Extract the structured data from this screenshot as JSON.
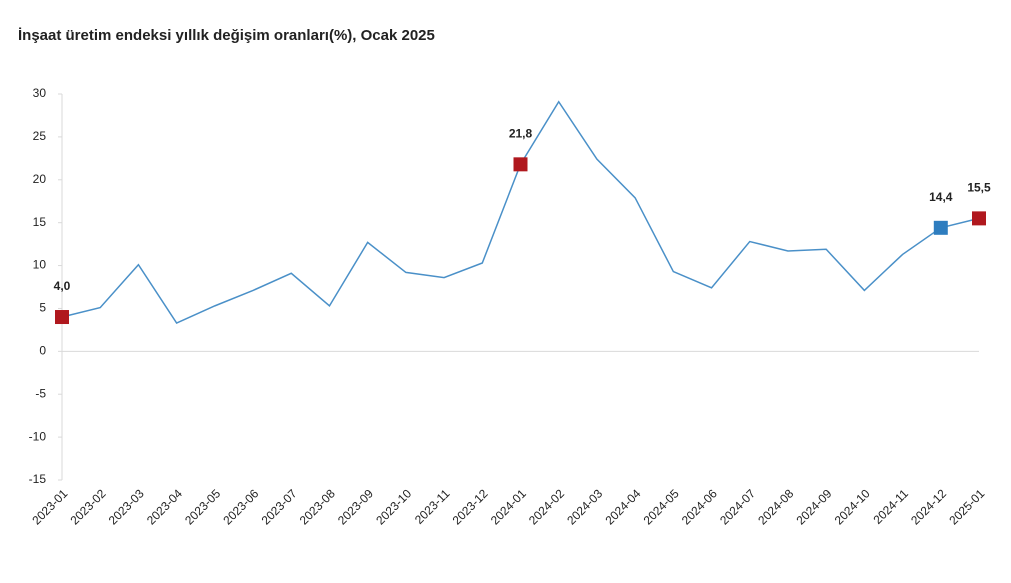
{
  "chart_data": {
    "type": "line",
    "title": "İnşaat üretim endeksi yıllık değişim oranları(%), Ocak 2025",
    "categories": [
      "2023-01",
      "2023-02",
      "2023-03",
      "2023-04",
      "2023-05",
      "2023-06",
      "2023-07",
      "2023-08",
      "2023-09",
      "2023-10",
      "2023-11",
      "2023-12",
      "2024-01",
      "2024-02",
      "2024-03",
      "2024-04",
      "2024-05",
      "2024-06",
      "2024-07",
      "2024-08",
      "2024-09",
      "2024-10",
      "2024-11",
      "2024-12",
      "2025-01"
    ],
    "series": [
      {
        "color": "#4a90c8",
        "values": [
          4.0,
          5.1,
          10.1,
          3.3,
          5.3,
          7.1,
          9.1,
          5.3,
          12.7,
          9.2,
          8.6,
          10.3,
          21.8,
          29.1,
          22.4,
          17.9,
          9.3,
          7.4,
          12.8,
          11.7,
          11.9,
          7.1,
          11.3,
          14.4,
          15.5
        ],
        "value_labels": [
          "4,0",
          null,
          null,
          null,
          null,
          null,
          null,
          null,
          null,
          null,
          null,
          null,
          "21,8",
          null,
          null,
          null,
          null,
          null,
          null,
          null,
          null,
          null,
          null,
          "14,4",
          "15,5"
        ],
        "marker_colors": [
          "#b0181e",
          null,
          null,
          null,
          null,
          null,
          null,
          null,
          null,
          null,
          null,
          null,
          "#b0181e",
          null,
          null,
          null,
          null,
          null,
          null,
          null,
          null,
          null,
          null,
          "#2e7dbf",
          "#b0181e"
        ]
      }
    ],
    "ylim": [
      -15,
      30
    ],
    "yticks": [
      -15,
      -10,
      -5,
      0,
      5,
      10,
      15,
      20,
      25,
      30
    ]
  }
}
